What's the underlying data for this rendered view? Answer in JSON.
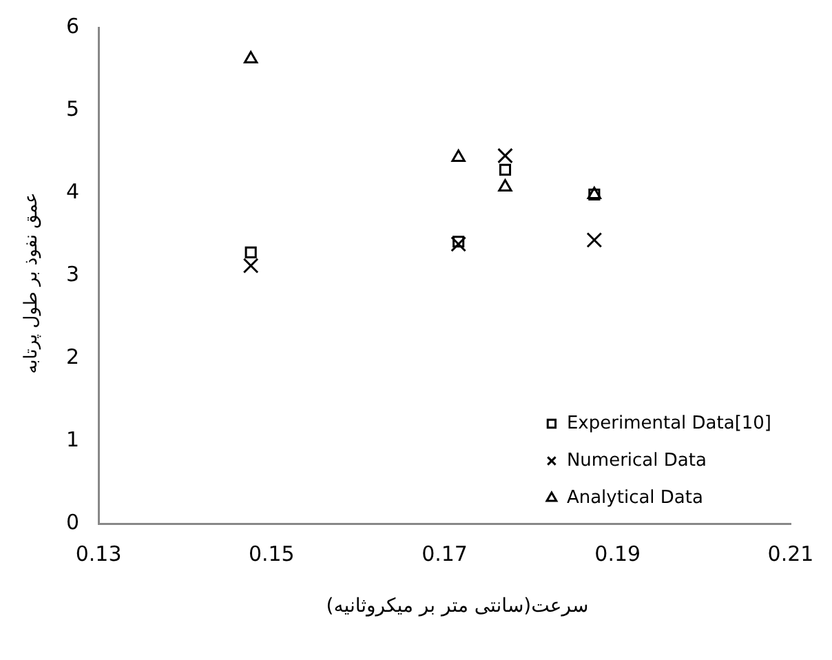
{
  "chart_data": {
    "type": "scatter",
    "xlabel": "سرعت(سانتی متر بر میکروثانیه)",
    "ylabel": "عمق نفوذ بر طول پرتابه",
    "xlim": [
      0.13,
      0.21
    ],
    "xticks": [
      0.13,
      0.15,
      0.17,
      0.19,
      0.21
    ],
    "ylim": [
      0,
      6
    ],
    "yticks": [
      0,
      1,
      2,
      3,
      4,
      5,
      6
    ],
    "grid": false,
    "legend": "bottom right",
    "x": [
      0.1476,
      0.1716,
      0.177,
      0.1873
    ],
    "series": [
      {
        "name": "Experimental Data[10]",
        "color": "#000000",
        "marker": "square",
        "values": [
          3.28,
          3.41,
          4.28,
          3.98
        ]
      },
      {
        "name": "Numerical Data",
        "color": "#000000",
        "marker": "cross",
        "values": [
          3.12,
          3.38,
          4.45,
          3.43
        ]
      },
      {
        "name": "Analytical Data",
        "color": "#000000",
        "marker": "triangle",
        "values": [
          5.62,
          4.43,
          4.07,
          3.98
        ]
      }
    ]
  }
}
